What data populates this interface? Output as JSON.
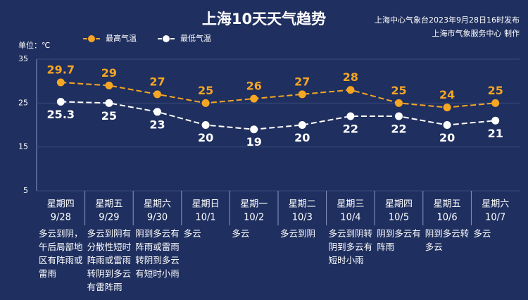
{
  "chart_data": {
    "type": "line",
    "title": "上海10天天气趋势",
    "source": [
      "上海中心气象台2023年9月28日16时发布",
      "上海市气象服务中心 制作"
    ],
    "y_label": "单位：℃",
    "categories": [
      "9/28",
      "9/29",
      "9/30",
      "10/1",
      "10/2",
      "10/3",
      "10/4",
      "10/5",
      "10/6",
      "10/7"
    ],
    "weekdays": [
      "星期四",
      "星期五",
      "星期六",
      "星期日",
      "星期一",
      "星期二",
      "星期三",
      "星期四",
      "星期五",
      "星期六"
    ],
    "weather": [
      "多云到阴，午后局部地区有阵雨或雷雨",
      "多云到阴有分散性短时阵雨或雷雨转阴到多云有雷阵雨",
      "阴到多云有阵雨或雷雨转阴到多云有短时小雨",
      "多云",
      "多云",
      "多云到阴",
      "多云到阴转阴到多云有短时小雨",
      "阴到多云有阵雨",
      "阴到多云转多云",
      "多云"
    ],
    "series": [
      {
        "name": "最高气温",
        "color": "#f5a623",
        "values": [
          29.7,
          29,
          27,
          25,
          26,
          27,
          28,
          25,
          24,
          25
        ]
      },
      {
        "name": "最低气温",
        "color": "#ffffff",
        "values": [
          25.3,
          25,
          23,
          20,
          19,
          20,
          22,
          22,
          20,
          21
        ]
      }
    ],
    "ylim": [
      5,
      35
    ],
    "yticks": [
      5,
      15,
      25,
      35
    ],
    "grid": true,
    "legend": "top"
  }
}
